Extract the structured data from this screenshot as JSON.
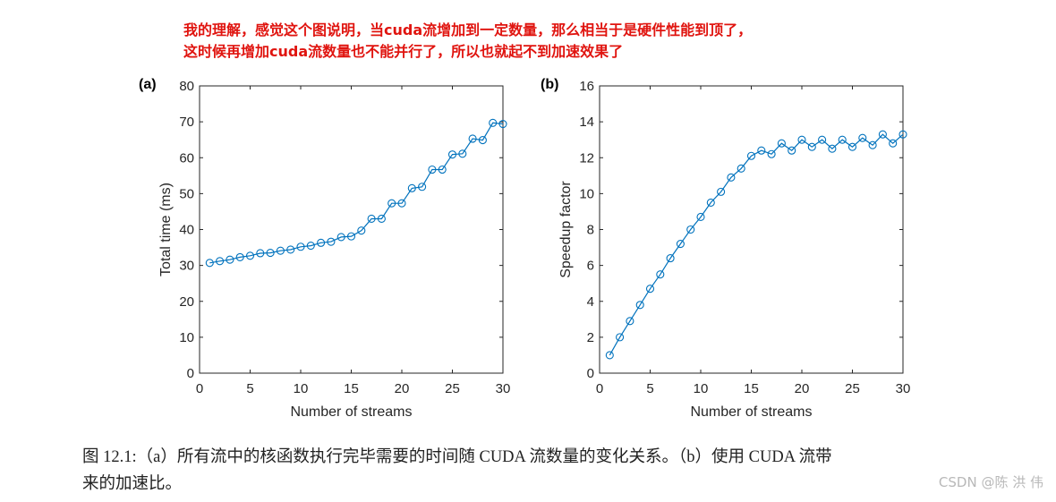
{
  "annotation": {
    "line1": "我的理解，感觉这个图说明，当cuda流增加到一定数量，那么相当于是硬件性能到顶了，",
    "line2": "这时候再增加cuda流数量也不能并行了，所以也就起不到加速效果了"
  },
  "caption": {
    "line1": "图 12.1:（a）所有流中的核函数执行完毕需要的时间随 CUDA 流数量的变化关系。（b）使用 CUDA 流带",
    "line2": "来的加速比。"
  },
  "watermark": "CSDN @陈 洪 伟",
  "series_color": "#0072BD",
  "chart_data": [
    {
      "type": "line",
      "panel_label": "(a)",
      "title": "",
      "xlabel": "Number of streams",
      "ylabel": "Total time (ms)",
      "xlim": [
        0,
        30
      ],
      "ylim": [
        0,
        80
      ],
      "xticks": [
        0,
        5,
        10,
        15,
        20,
        25,
        30
      ],
      "yticks": [
        0,
        10,
        20,
        30,
        40,
        50,
        60,
        70,
        80
      ],
      "x": [
        1,
        2,
        3,
        4,
        5,
        6,
        7,
        8,
        9,
        10,
        11,
        12,
        13,
        14,
        15,
        16,
        17,
        18,
        19,
        20,
        21,
        22,
        23,
        24,
        25,
        26,
        27,
        28,
        29,
        30
      ],
      "y": [
        30.7,
        31.2,
        31.6,
        32.3,
        32.7,
        33.4,
        33.5,
        34.1,
        34.4,
        35.2,
        35.5,
        36.3,
        36.6,
        37.9,
        38.1,
        39.7,
        43.0,
        43.0,
        47.3,
        47.3,
        51.5,
        51.9,
        56.7,
        56.7,
        60.9,
        61.1,
        65.3,
        64.9,
        69.7,
        69.4
      ],
      "marker": "o"
    },
    {
      "type": "line",
      "panel_label": "(b)",
      "title": "",
      "xlabel": "Number of streams",
      "ylabel": "Speedup factor",
      "xlim": [
        0,
        30
      ],
      "ylim": [
        0,
        16
      ],
      "xticks": [
        0,
        5,
        10,
        15,
        20,
        25,
        30
      ],
      "yticks": [
        0,
        2,
        4,
        6,
        8,
        10,
        12,
        14,
        16
      ],
      "x": [
        1,
        2,
        3,
        4,
        5,
        6,
        7,
        8,
        9,
        10,
        11,
        12,
        13,
        14,
        15,
        16,
        17,
        18,
        19,
        20,
        21,
        22,
        23,
        24,
        25,
        26,
        27,
        28,
        29,
        30
      ],
      "y": [
        1.0,
        2.0,
        2.9,
        3.8,
        4.7,
        5.5,
        6.4,
        7.2,
        8.0,
        8.7,
        9.5,
        10.1,
        10.9,
        11.4,
        12.1,
        12.4,
        12.2,
        12.8,
        12.4,
        13.0,
        12.6,
        13.0,
        12.5,
        13.0,
        12.6,
        13.1,
        12.7,
        13.3,
        12.8,
        13.3
      ],
      "marker": "o"
    }
  ]
}
